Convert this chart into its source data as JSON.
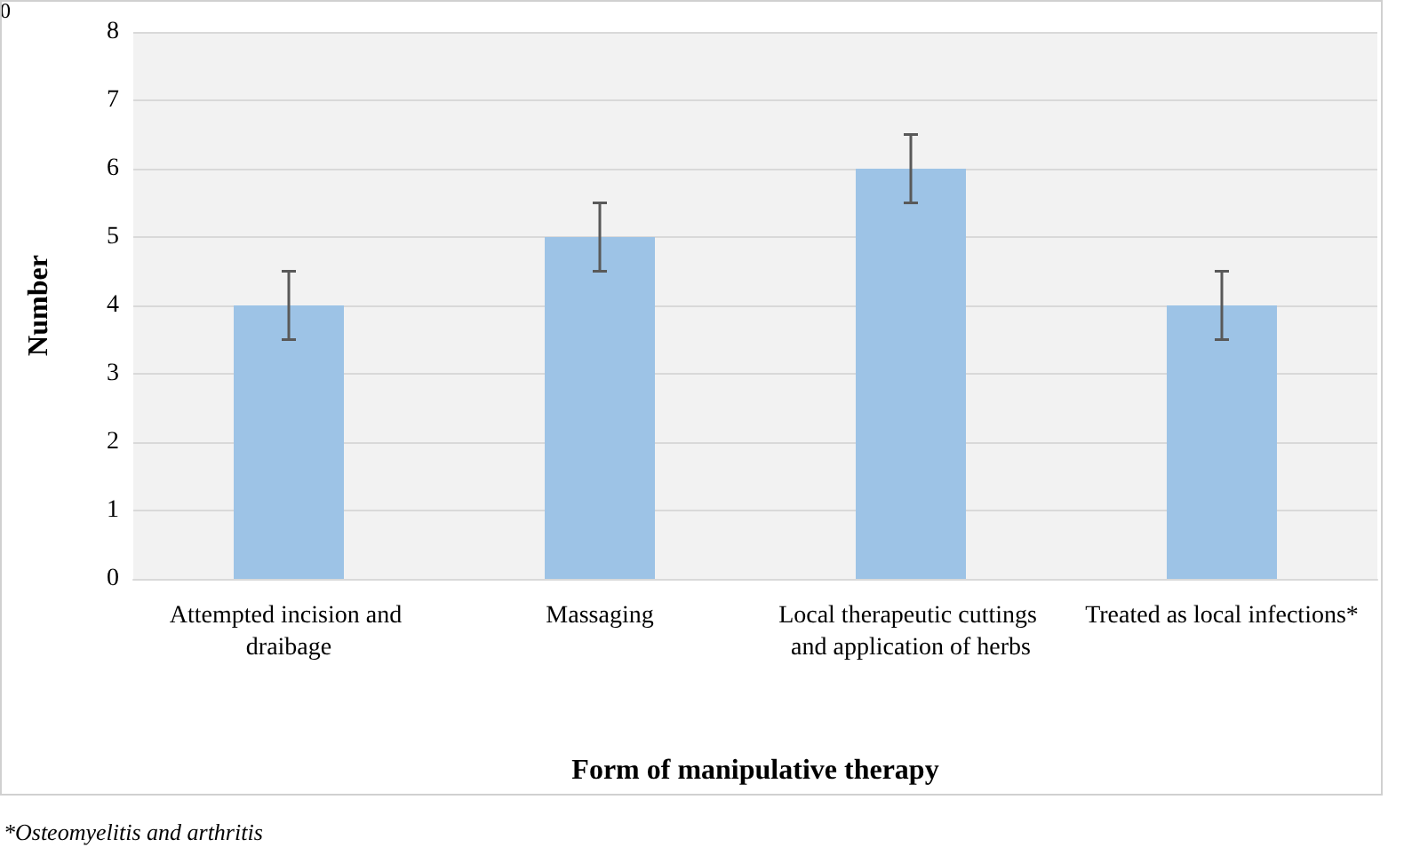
{
  "chart_data": {
    "type": "bar",
    "xlabel": "Form of manipulative therapy",
    "ylabel": "Number",
    "categories": [
      "Attempted incision and draibage",
      "Massaging",
      "Local therapeutic cuttings and application of herbs",
      "Treated as local infections*"
    ],
    "values": [
      4,
      5,
      6,
      4
    ],
    "errors": [
      0.5,
      0.5,
      0.5,
      0.5
    ],
    "color": "#9dc3e6",
    "ylim": [
      0,
      8
    ],
    "yticks": [
      0,
      1,
      2,
      3,
      4,
      5,
      6,
      7,
      8
    ],
    "grid": "y",
    "annotations": [
      "0",
      "*Osteomyelitis and arthritis"
    ]
  }
}
